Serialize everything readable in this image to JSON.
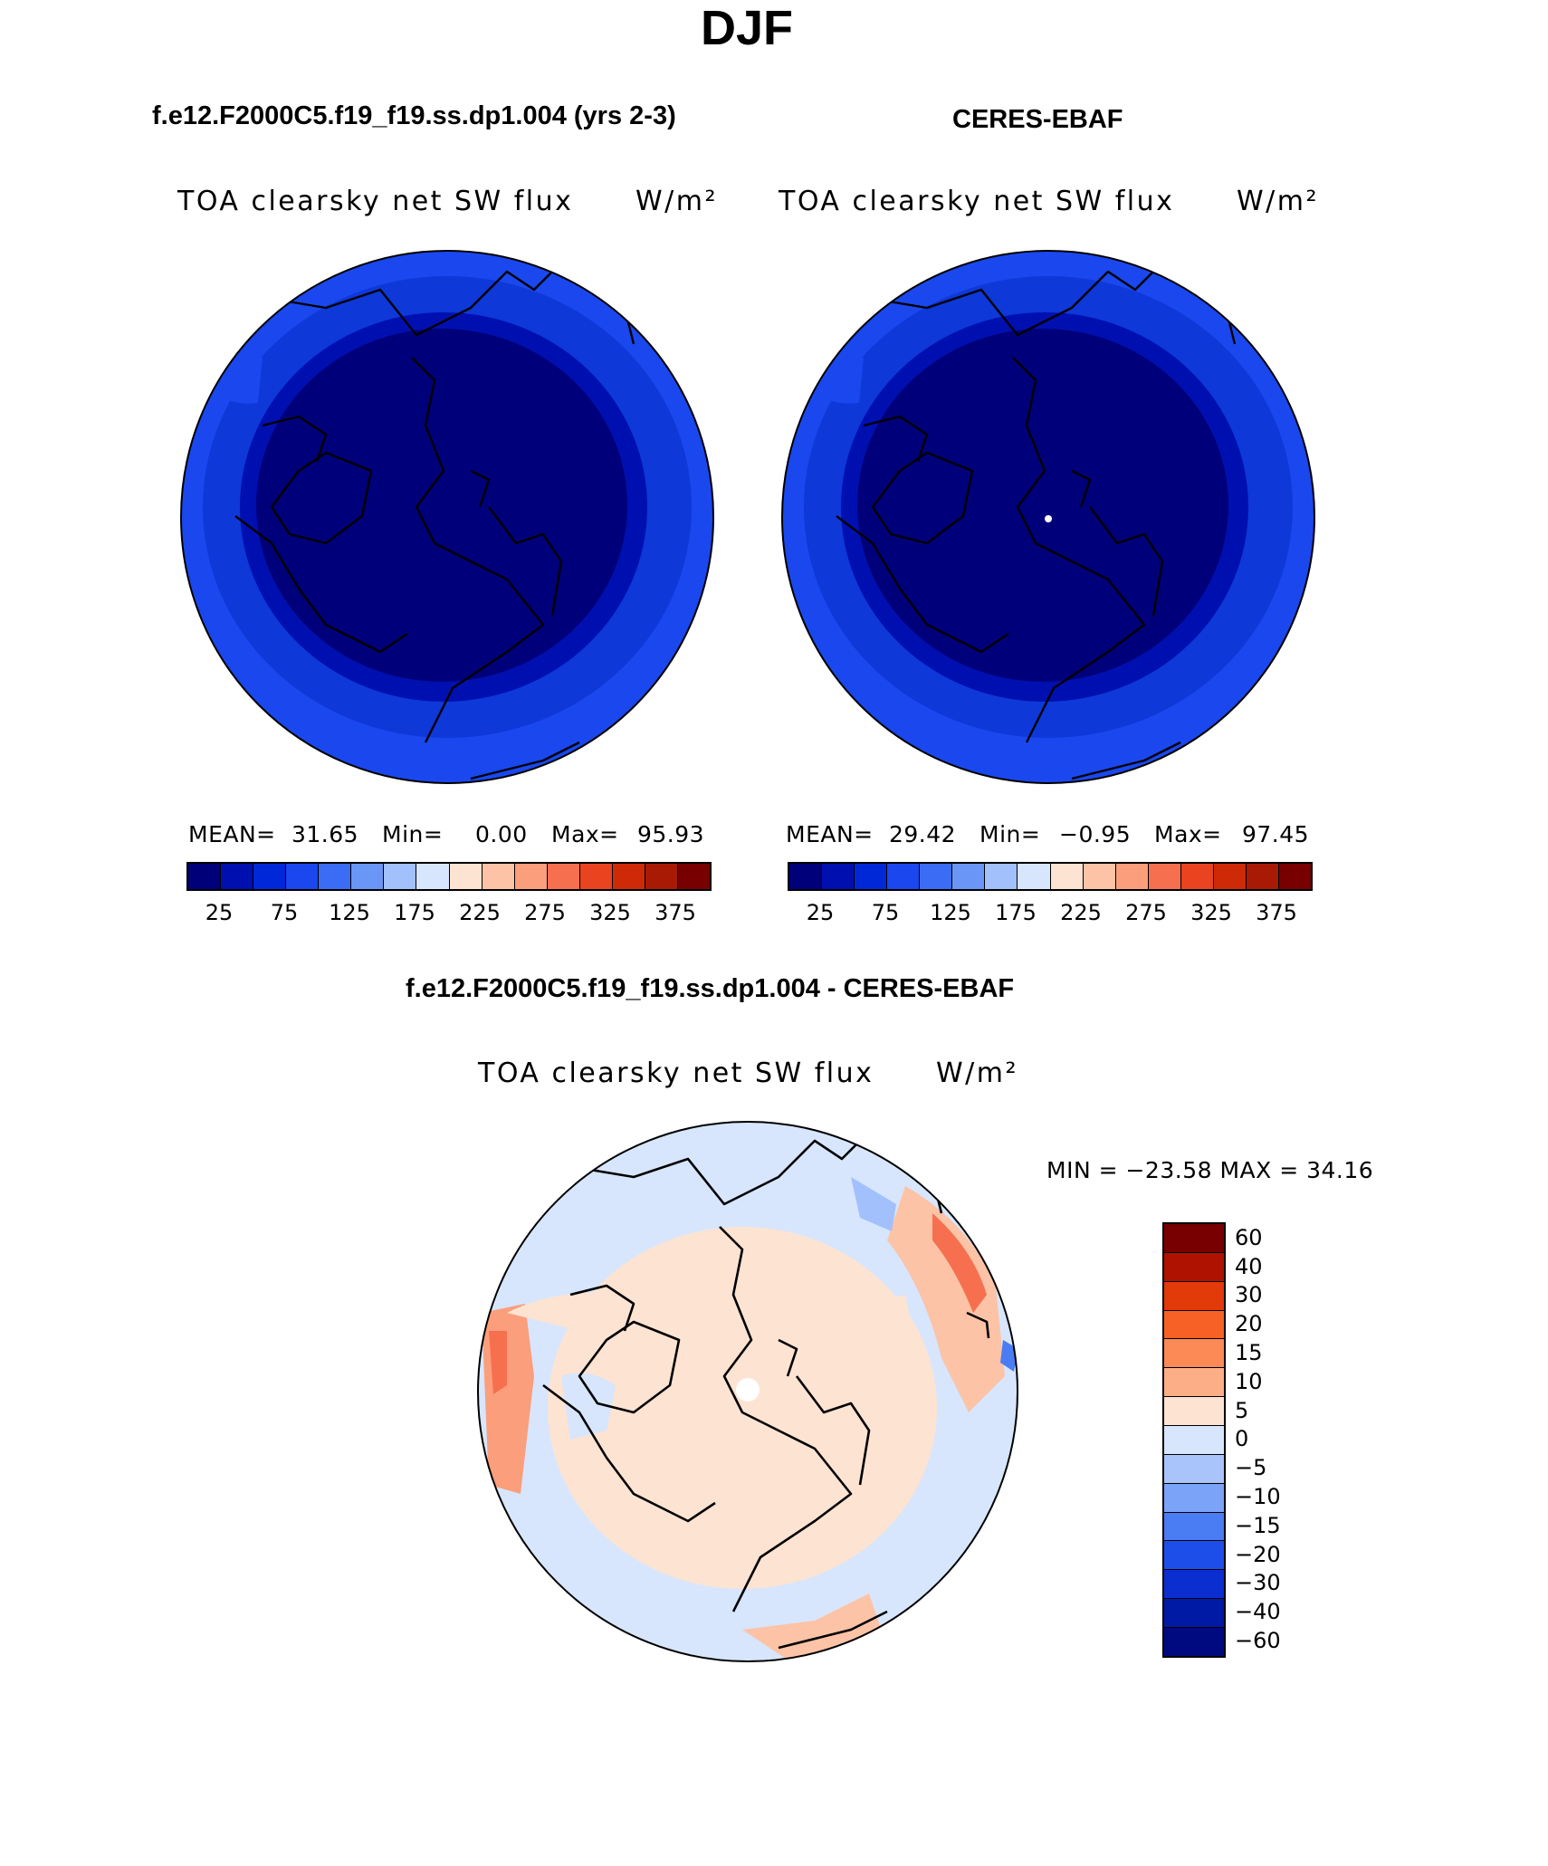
{
  "title": "DJF",
  "panels": [
    {
      "title": "f.e12.F2000C5.f19_f19.ss.dp1.004 (yrs 2-3)",
      "variable": "TOA clearsky net SW flux",
      "units": "W/m²",
      "stats": {
        "mean": "31.65",
        "min": "0.00",
        "max": "95.93"
      }
    },
    {
      "title": "CERES-EBAF",
      "variable": "TOA clearsky net SW flux",
      "units": "W/m²",
      "stats": {
        "mean": "29.42",
        "min": "−0.95",
        "max": "97.45"
      }
    },
    {
      "title": "f.e12.F2000C5.f19_f19.ss.dp1.004 - CERES-EBAF",
      "variable": "TOA clearsky net SW flux",
      "units": "W/m²",
      "minmax": "MIN = −23.58  MAX =   34.16"
    }
  ],
  "labels": {
    "mean": "MEAN=",
    "min": "Min=",
    "max": "Max="
  },
  "colorbar_abs": {
    "colors": [
      "#00007a",
      "#0010b0",
      "#0028d8",
      "#1a48ee",
      "#3a6cf5",
      "#6a96f8",
      "#a2c0fb",
      "#d7e6fd",
      "#fde3d2",
      "#fcc3a6",
      "#fb9e7c",
      "#f67050",
      "#ea4320",
      "#cf2a08",
      "#a81a04",
      "#780000"
    ],
    "tick_labels": [
      "25",
      "75",
      "125",
      "175",
      "225",
      "275",
      "325",
      "375"
    ]
  },
  "colorbar_diff": {
    "colors": [
      "#780000",
      "#b01200",
      "#e23a08",
      "#f76125",
      "#fb8a56",
      "#fcaf86",
      "#fde3d2",
      "#d7e6fd",
      "#a8c4fb",
      "#7ba4f8",
      "#4a7cf4",
      "#1e4eea",
      "#0a2ed0",
      "#001aa6",
      "#000a80"
    ],
    "tick_labels": [
      "60",
      "40",
      "30",
      "20",
      "15",
      "10",
      "5",
      "0",
      "−5",
      "−10",
      "−15",
      "−20",
      "−30",
      "−40",
      "−60"
    ]
  }
}
